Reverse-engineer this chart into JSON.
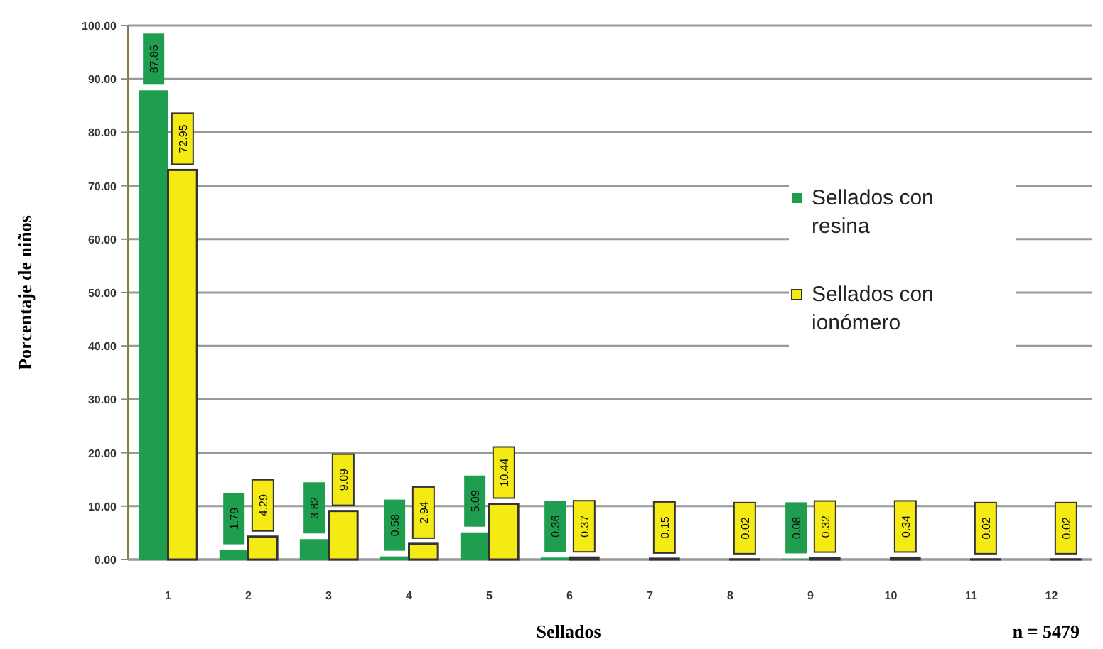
{
  "chart_data": {
    "type": "bar",
    "xlabel": "Sellados",
    "ylabel": "Porcentaje de niños",
    "categories": [
      "1",
      "2",
      "3",
      "4",
      "5",
      "6",
      "7",
      "8",
      "9",
      "10",
      "11",
      "12"
    ],
    "series": [
      {
        "name": "Sellados con resina",
        "color": "#1e9e4e",
        "values": [
          87.86,
          1.79,
          3.82,
          0.58,
          5.09,
          0.36,
          null,
          null,
          0.08,
          null,
          null,
          null
        ]
      },
      {
        "name": "Sellados con ionómero",
        "color": "#f5ea14",
        "values": [
          72.95,
          4.29,
          9.09,
          2.94,
          10.44,
          0.37,
          0.15,
          0.02,
          0.32,
          0.34,
          0.02,
          0.02
        ]
      }
    ],
    "ylim": [
      0,
      100
    ],
    "yticks": [
      {
        "value": 0,
        "label": "0.00"
      },
      {
        "value": 10,
        "label": "10.00"
      },
      {
        "value": 20,
        "label": "20.00"
      },
      {
        "value": 30,
        "label": "30.00"
      },
      {
        "value": 40,
        "label": "40.00"
      },
      {
        "value": 50,
        "label": "50.00"
      },
      {
        "value": 60,
        "label": "60.00"
      },
      {
        "value": 70,
        "label": "70.00"
      },
      {
        "value": 80,
        "label": "80.00"
      },
      {
        "value": 90,
        "label": "90.00"
      },
      {
        "value": 100,
        "label": "100.00"
      }
    ],
    "grid": "y",
    "legend": "right",
    "data_labels": true,
    "annotations": [
      "n = 5479"
    ]
  }
}
